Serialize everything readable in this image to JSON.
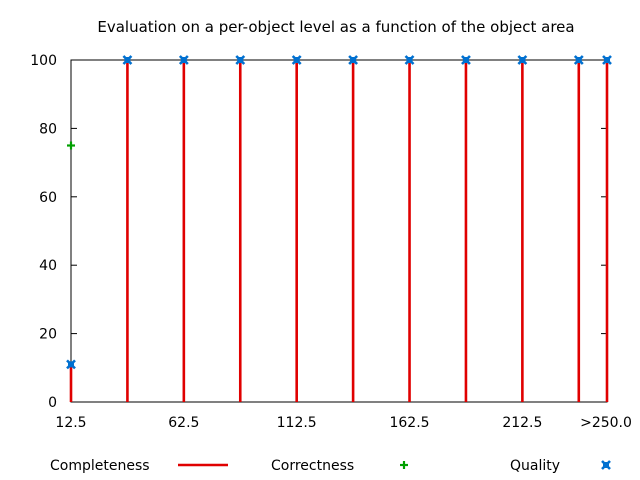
{
  "chart_data": {
    "type": "bar",
    "title": "Evaluation on a per-object level as a function of the object area",
    "xlabel": "",
    "ylabel": "",
    "ylim": [
      0,
      100
    ],
    "y_ticks": [
      0,
      20,
      40,
      60,
      80,
      100
    ],
    "x_range": [
      12.5,
      250
    ],
    "x_ticks": [
      "12.5",
      "62.5",
      "112.5",
      "162.5",
      "212.5",
      ">250.0"
    ],
    "x_tick_values": [
      12.5,
      62.5,
      112.5,
      162.5,
      212.5,
      250
    ],
    "x": [
      12.5,
      37.5,
      62.5,
      87.5,
      112.5,
      137.5,
      162.5,
      187.5,
      212.5,
      237.5,
      250
    ],
    "series": [
      {
        "name": "Completeness",
        "style": "impulses",
        "color": "#e00000",
        "values": [
          11,
          100,
          100,
          100,
          100,
          100,
          100,
          100,
          100,
          100,
          100
        ]
      },
      {
        "name": "Correctness",
        "style": "points",
        "marker": "plus",
        "color": "#00a000",
        "values": [
          75,
          null,
          null,
          null,
          null,
          null,
          null,
          null,
          null,
          null,
          null
        ]
      },
      {
        "name": "Quality",
        "style": "points",
        "marker": "cross",
        "color": "#0070d0",
        "values": [
          11,
          100,
          100,
          100,
          100,
          100,
          100,
          100,
          100,
          100,
          100
        ]
      }
    ],
    "grid": false,
    "legend_position": "bottom"
  }
}
